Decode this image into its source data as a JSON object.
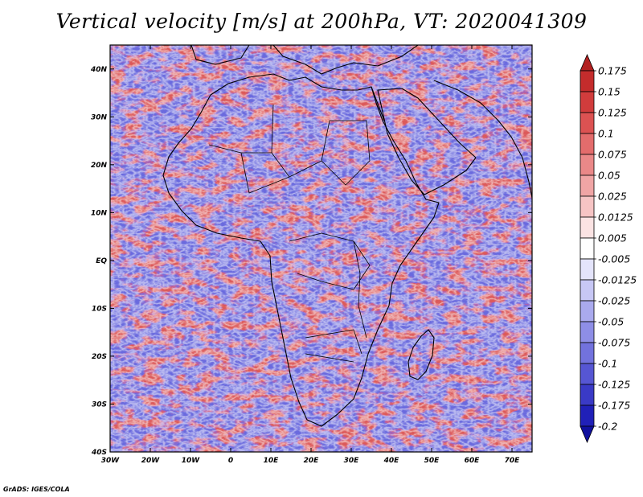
{
  "title": "Vertical velocity [m/s] at 200hPa, VT: 2020041309",
  "credit": "GrADS: IGES/COLA",
  "map": {
    "lon_range": [
      -30,
      75
    ],
    "lat_range": [
      -40,
      45
    ],
    "x_ticks": [
      "30W",
      "20W",
      "10W",
      "0",
      "10E",
      "20E",
      "30E",
      "40E",
      "50E",
      "60E",
      "70E"
    ],
    "x_tick_values": [
      -30,
      -20,
      -10,
      0,
      10,
      20,
      30,
      40,
      50,
      60,
      70
    ],
    "y_ticks": [
      "40N",
      "30N",
      "20N",
      "10N",
      "EQ",
      "10S",
      "20S",
      "30S",
      "40S"
    ],
    "y_tick_values": [
      40,
      30,
      20,
      10,
      0,
      -10,
      -20,
      -30,
      -40
    ]
  },
  "colorbar": {
    "labels": [
      "0.175",
      "0.15",
      "0.125",
      "0.1",
      "0.075",
      "0.05",
      "0.025",
      "0.0125",
      "0.005",
      "-0.005",
      "-0.0125",
      "-0.025",
      "-0.05",
      "-0.075",
      "-0.1",
      "-0.125",
      "-0.175",
      "-0.2"
    ],
    "colors": [
      "#b22020",
      "#c42c2c",
      "#d13c3c",
      "#dc5252",
      "#e36c6c",
      "#ea8888",
      "#f0a5a5",
      "#f6c4c4",
      "#fbe3e3",
      "#ffffff",
      "#e4e4fb",
      "#c7c7f5",
      "#aaaaee",
      "#8e8ee6",
      "#7272dd",
      "#5656d3",
      "#3a3ac6",
      "#2020b8",
      "#10109e"
    ]
  }
}
